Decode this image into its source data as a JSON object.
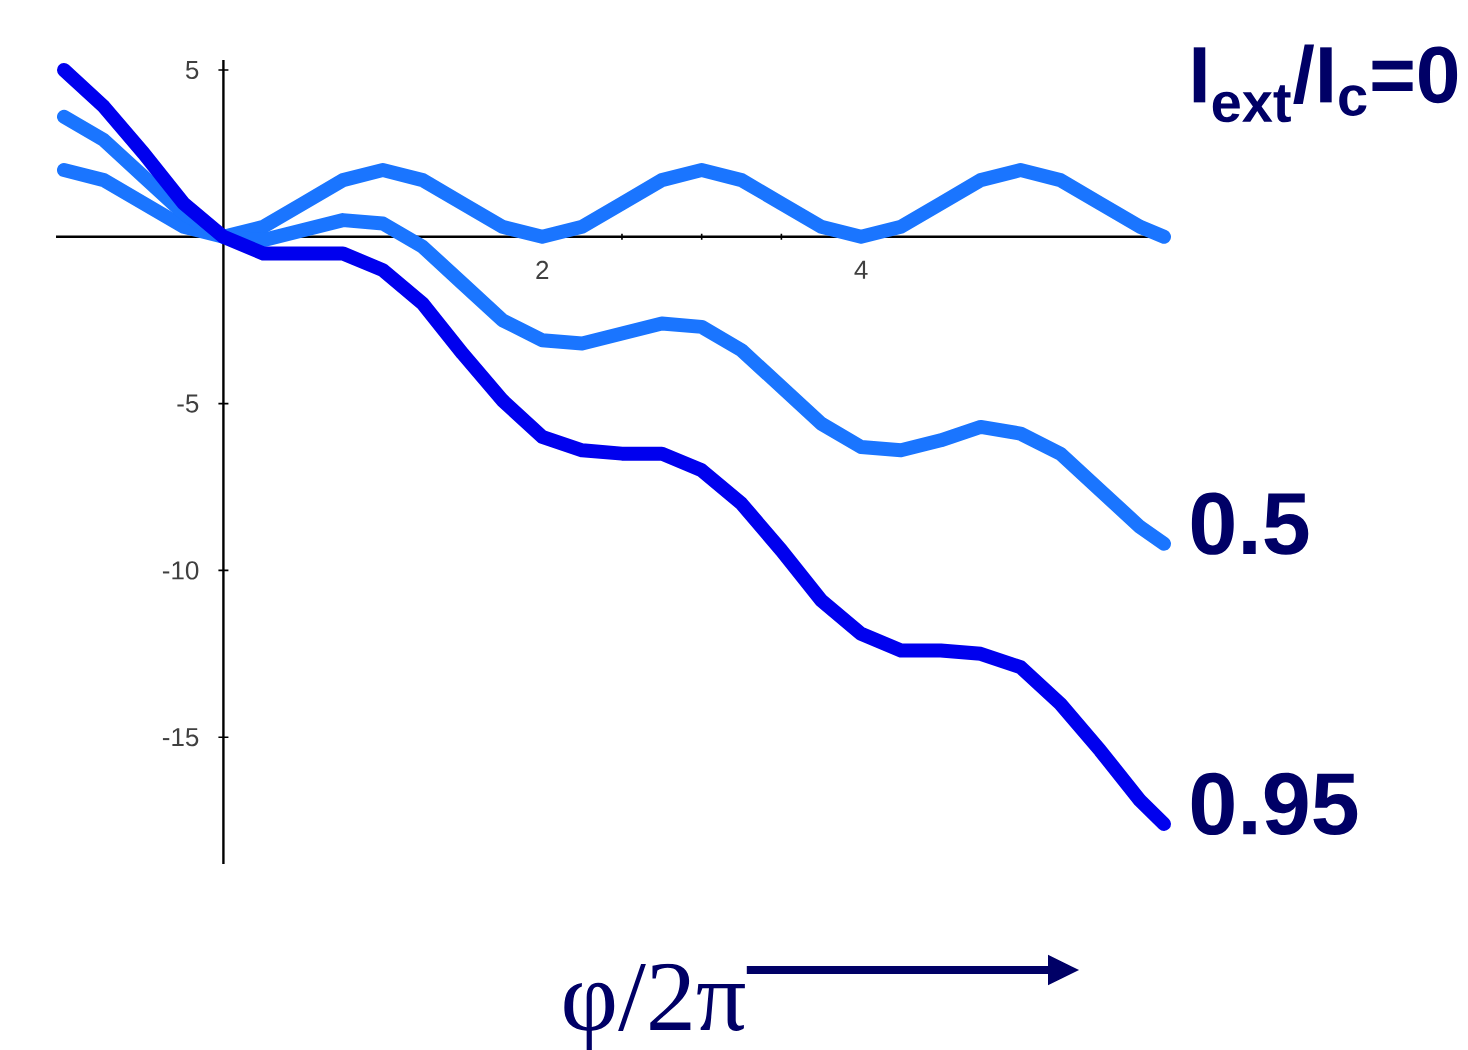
{
  "chart_data": {
    "type": "line",
    "xlabel": "φ/2π",
    "x": [
      -1,
      -0.75,
      -0.5,
      -0.25,
      0,
      0.25,
      0.5,
      0.75,
      1,
      1.25,
      1.5,
      1.75,
      2,
      2.25,
      2.5,
      2.75,
      3,
      3.25,
      3.5,
      3.75,
      4,
      4.25,
      4.5,
      4.75,
      5,
      5.25,
      5.5,
      5.75,
      5.9
    ],
    "series": [
      {
        "name": "I$_{ext}$/I$_{c}$=0",
        "color": "#1a75ff",
        "values": [
          2,
          1.7,
          1,
          0.3,
          0,
          0.3,
          1,
          1.7,
          2,
          1.7,
          1,
          0.3,
          0,
          0.3,
          1,
          1.7,
          2,
          1.7,
          1,
          0.3,
          0,
          0.3,
          1,
          1.7,
          2,
          1.7,
          1,
          0.3,
          0
        ]
      },
      {
        "name": "0.5",
        "color": "#1a75ff",
        "values": [
          3.6,
          2.9,
          1.8,
          0.7,
          0,
          -0.1,
          0.2,
          0.5,
          0.4,
          -0.3,
          -1.4,
          -2.5,
          -3.1,
          -3.2,
          -2.9,
          -2.6,
          -2.7,
          -3.4,
          -4.5,
          -5.6,
          -6.3,
          -6.4,
          -6.1,
          -5.7,
          -5.9,
          -6.5,
          -7.6,
          -8.7,
          -9.2
        ]
      },
      {
        "name": "0.95",
        "color": "#0000ee",
        "values": [
          5.0,
          3.9,
          2.5,
          1.0,
          0,
          -0.5,
          -0.5,
          -0.5,
          -1.0,
          -2.0,
          -3.5,
          -4.9,
          -6.0,
          -6.4,
          -6.5,
          -6.5,
          -7.0,
          -8.0,
          -9.4,
          -10.9,
          -11.9,
          -12.4,
          -12.4,
          -12.5,
          -12.9,
          -14.0,
          -15.4,
          -16.9,
          -17.6
        ]
      }
    ],
    "xlim": [
      -1.05,
      5.9
    ],
    "ylim": [
      -18.8,
      5.3
    ],
    "xticks": [
      2,
      4
    ],
    "yticks": [
      5,
      -5,
      -10,
      -15
    ]
  }
}
